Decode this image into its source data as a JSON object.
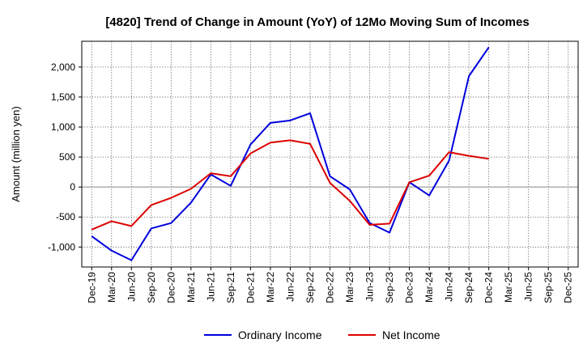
{
  "chart_data": {
    "type": "line",
    "title": "[4820]  Trend of Change in Amount (YoY) of 12Mo Moving Sum of Incomes",
    "xlabel": "",
    "ylabel": "Amount (million yen)",
    "ylim": [
      -1333,
      2430
    ],
    "yticks": [
      -1000,
      -500,
      0,
      500,
      1000,
      1500,
      2000
    ],
    "ytick_labels": [
      "-1,000",
      "-500",
      "0",
      "500",
      "1,000",
      "1,500",
      "2,000"
    ],
    "categories": [
      "Dec-19",
      "Mar-20",
      "Jun-20",
      "Sep-20",
      "Dec-20",
      "Mar-21",
      "Jun-21",
      "Sep-21",
      "Dec-21",
      "Mar-22",
      "Jun-22",
      "Sep-22",
      "Dec-22",
      "Mar-23",
      "Jun-23",
      "Sep-23",
      "Dec-23",
      "Mar-24",
      "Jun-24",
      "Sep-24",
      "Dec-24",
      "Mar-25",
      "Jun-25",
      "Sep-25",
      "Dec-25"
    ],
    "grid": true,
    "legend_position": "bottom-center",
    "series": [
      {
        "name": "Ordinary Income",
        "color": "#0000dd",
        "values": [
          -820,
          -1060,
          -1220,
          -690,
          -600,
          -260,
          210,
          20,
          710,
          1070,
          1110,
          1230,
          180,
          -40,
          -600,
          -760,
          80,
          -140,
          440,
          1850,
          2330,
          null,
          null,
          null,
          null
        ]
      },
      {
        "name": "Net Income",
        "color": "#dd0000",
        "values": [
          -710,
          -570,
          -650,
          -300,
          -180,
          -30,
          230,
          180,
          560,
          740,
          780,
          720,
          70,
          -230,
          -630,
          -610,
          80,
          190,
          580,
          520,
          470,
          null,
          null,
          null,
          null
        ]
      }
    ]
  }
}
